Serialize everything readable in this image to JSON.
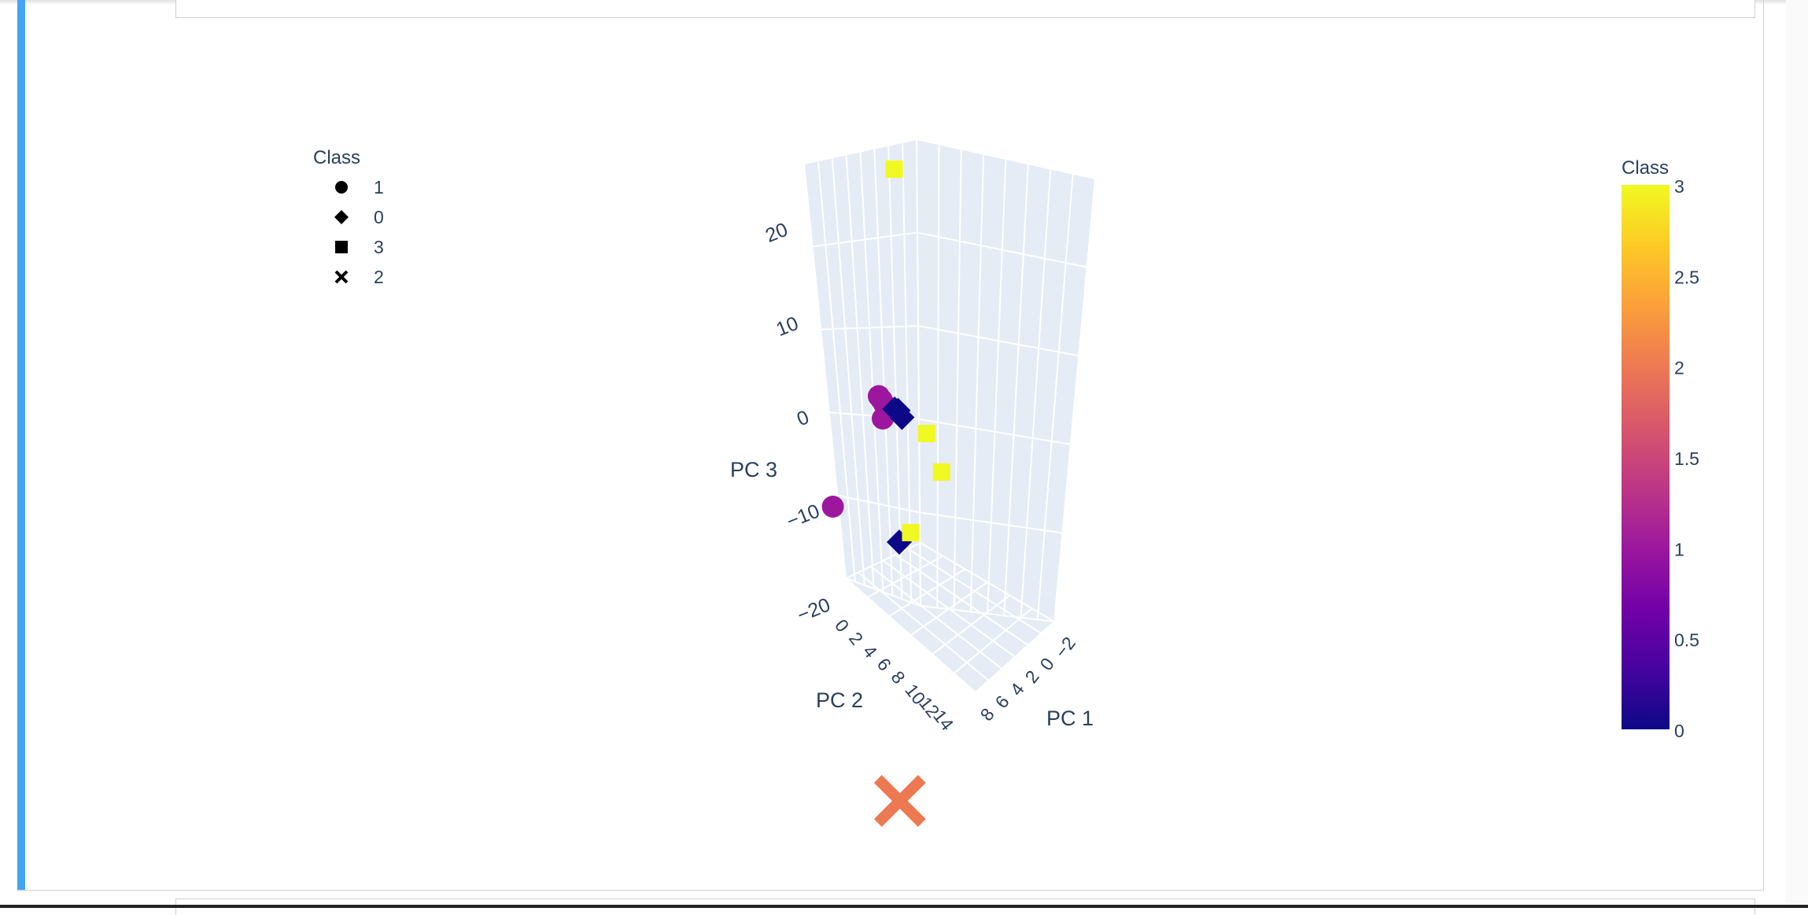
{
  "chart_data": {
    "type": "scatter3d",
    "axes": {
      "x": {
        "label": "PC 1",
        "ticks": [
          "−2",
          "0",
          "2",
          "4",
          "6",
          "8"
        ]
      },
      "y": {
        "label": "PC 2",
        "ticks": [
          "0",
          "2",
          "4",
          "6",
          "8",
          "10",
          "12",
          "14"
        ]
      },
      "z": {
        "label": "PC 3",
        "ticks": [
          "20",
          "10",
          "0",
          "−10",
          "−20"
        ]
      }
    },
    "legend": {
      "title": "Class",
      "placement": "top-left",
      "items": [
        {
          "label": "1",
          "symbol": "circle"
        },
        {
          "label": "0",
          "symbol": "diamond"
        },
        {
          "label": "3",
          "symbol": "square"
        },
        {
          "label": "2",
          "symbol": "x"
        }
      ]
    },
    "colorbar": {
      "title": "Class",
      "ticks": [
        "3",
        "2.5",
        "2",
        "1.5",
        "1",
        "0.5",
        "0"
      ],
      "range": [
        0,
        3
      ],
      "colors": [
        "#0d0887",
        "#46039f",
        "#7201a8",
        "#9c179e",
        "#bd3786",
        "#d8576b",
        "#ed7953",
        "#fb9f3a",
        "#fdca26",
        "#f0f921"
      ]
    },
    "series": [
      {
        "class": 1,
        "symbol": "circle",
        "color": "#9c179e",
        "points": [
          [
            -1.0,
            0.5,
            1.5
          ],
          [
            -0.5,
            1.0,
            1.8
          ],
          [
            0.0,
            1.5,
            2.0
          ],
          [
            0.5,
            1.8,
            1.9
          ],
          [
            1.0,
            2.0,
            2.2
          ],
          [
            0.0,
            2.2,
            1.5
          ],
          [
            -6.0,
            2.0,
            -8.0
          ]
        ]
      },
      {
        "class": 0,
        "symbol": "diamond",
        "color": "#0d0887",
        "points": [
          [
            1.5,
            2.5,
            3.0
          ],
          [
            2.0,
            2.8,
            3.3
          ],
          [
            2.5,
            3.0,
            3.0
          ],
          [
            3.0,
            6.0,
            -5.0
          ]
        ]
      },
      {
        "class": 3,
        "symbol": "square",
        "color": "#f0f921",
        "points": [
          [
            1.0,
            0.0,
            22.0
          ],
          [
            5.0,
            2.0,
            1.0
          ],
          [
            7.0,
            3.0,
            -1.0
          ],
          [
            4.0,
            5.0,
            -5.0
          ]
        ]
      },
      {
        "class": 2,
        "symbol": "x",
        "color": "#ed7953",
        "points": [
          [
            4.0,
            10.0,
            -24.0
          ]
        ]
      }
    ]
  }
}
